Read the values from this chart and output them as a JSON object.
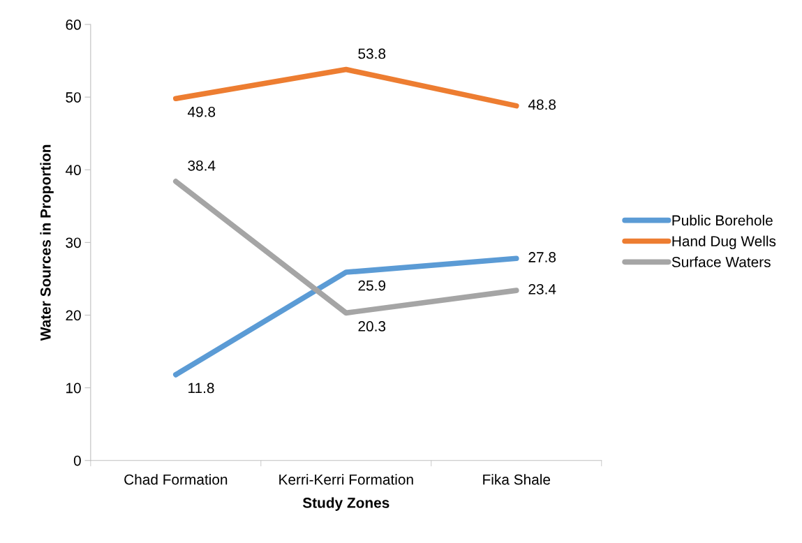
{
  "chart_data": {
    "type": "line",
    "xlabel": "Study Zones",
    "ylabel": "Water Sources in Proportion",
    "categories": [
      "Chad Formation",
      "Kerri-Kerri Formation",
      "Fika Shale"
    ],
    "series": [
      {
        "name": "Public Borehole",
        "color": "#5b9bd5",
        "values": [
          11.8,
          25.9,
          27.8
        ]
      },
      {
        "name": "Hand Dug Wells",
        "color": "#ed7d31",
        "values": [
          49.8,
          53.8,
          48.8
        ]
      },
      {
        "name": "Surface Waters",
        "color": "#a5a5a5",
        "values": [
          38.4,
          20.3,
          23.4
        ]
      }
    ],
    "ylim": [
      0,
      60
    ],
    "yticks": [
      0,
      10,
      20,
      30,
      40,
      50,
      60
    ],
    "grid": false,
    "legend": "right",
    "marker": "none",
    "line_style": "solid",
    "data_labels": true
  }
}
